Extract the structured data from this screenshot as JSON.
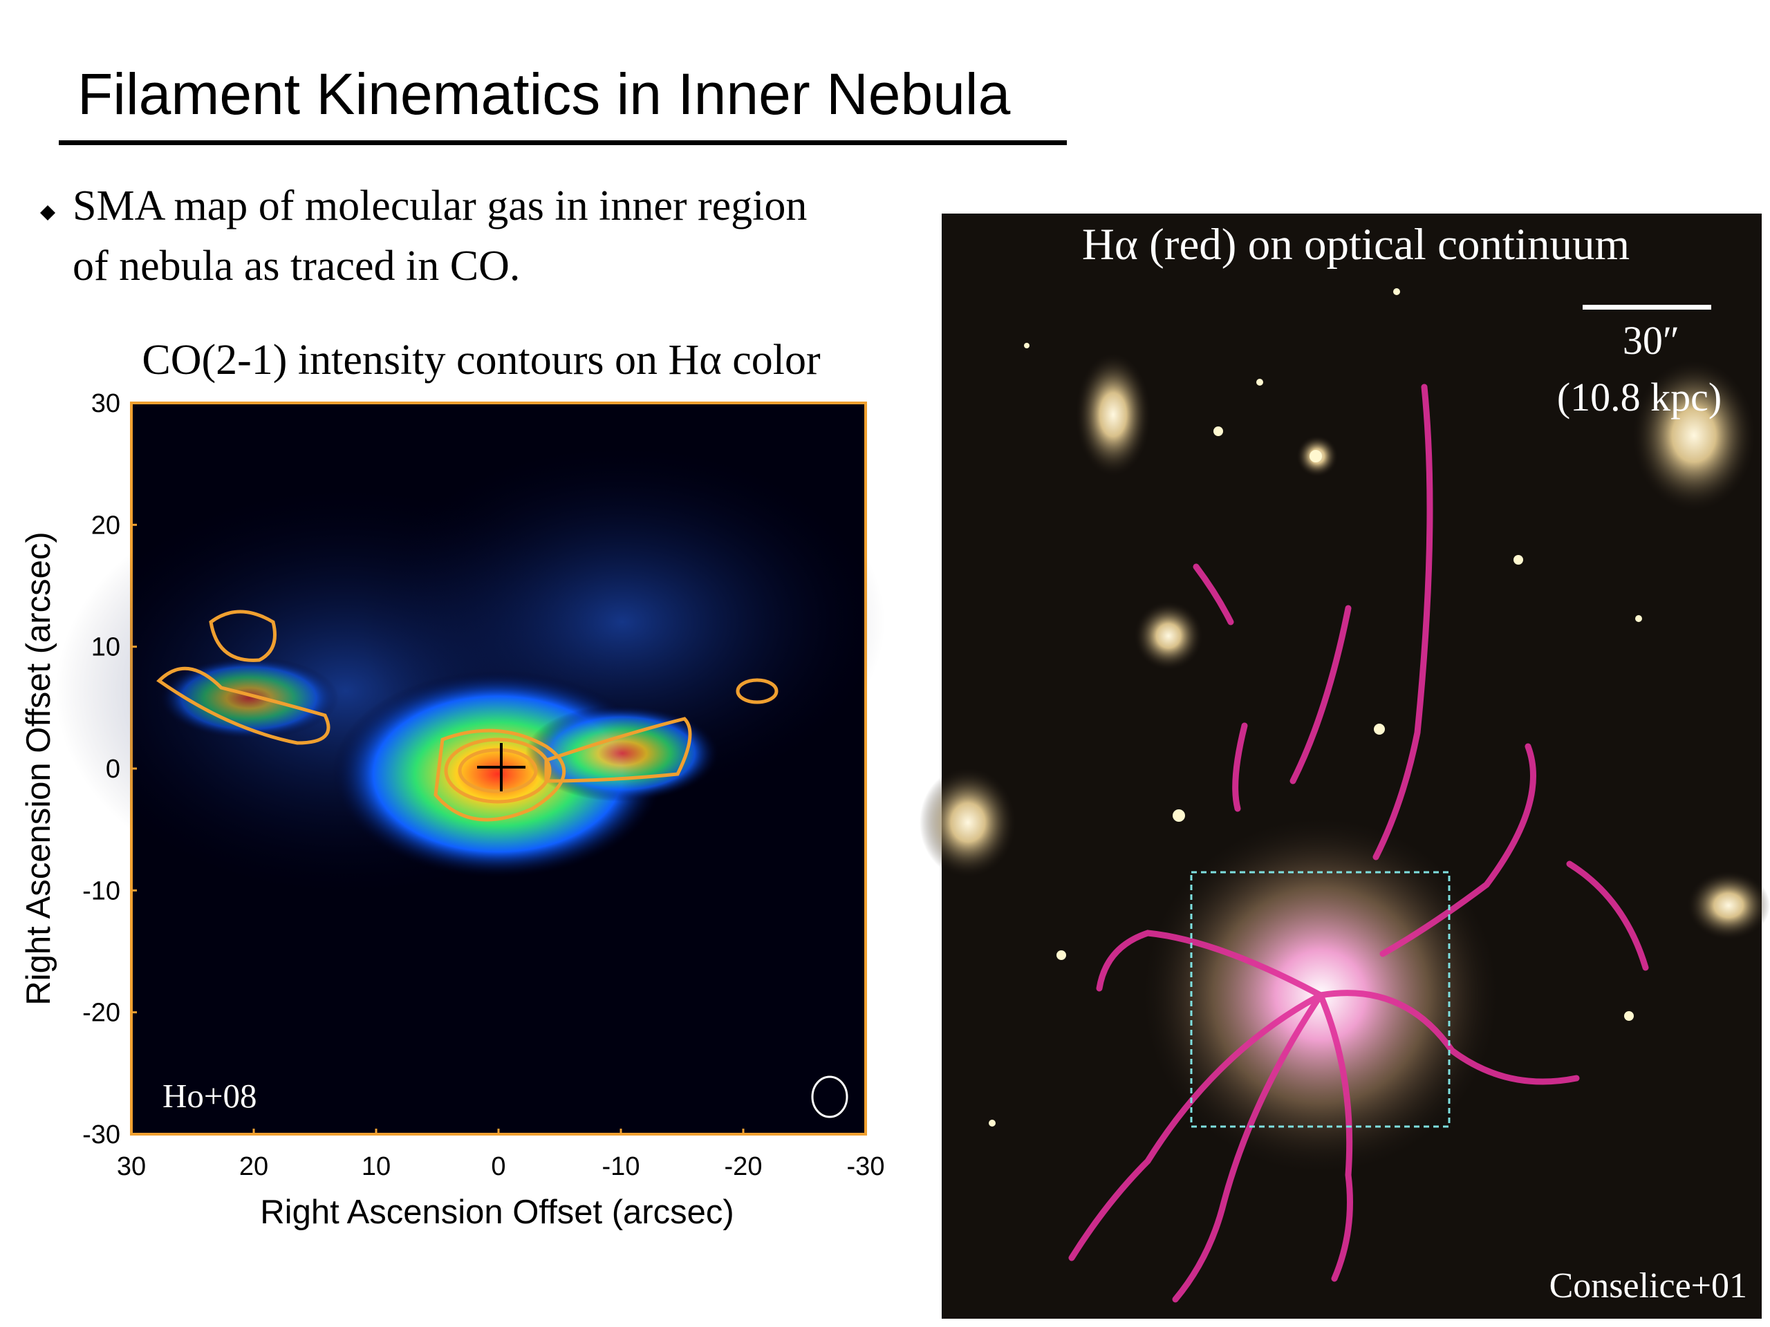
{
  "header": {
    "title": "Filament Kinematics in Inner Nebula"
  },
  "bullets": [
    {
      "lines": [
        "SMA map of molecular gas in inner region",
        "of nebula as traced in CO."
      ]
    }
  ],
  "left_panel": {
    "title": "CO(2-1) intensity contours on Hα color",
    "x_label": "Right Ascension Offset (arcsec)",
    "y_label": "Right Ascension Offset (arcsec)",
    "xlim": [
      30,
      -30
    ],
    "ylim": [
      -30,
      30
    ],
    "xticks": [
      30,
      20,
      10,
      0,
      -10,
      -20,
      -30
    ],
    "yticks": [
      30,
      20,
      10,
      0,
      -10,
      -20,
      -30
    ],
    "credit": "Ho+08"
  },
  "right_panel": {
    "caption": "Hα (red) on optical continuum",
    "scale_bar": [
      "30″",
      "(10.8 kpc)"
    ],
    "credit": "Conselice+01"
  }
}
